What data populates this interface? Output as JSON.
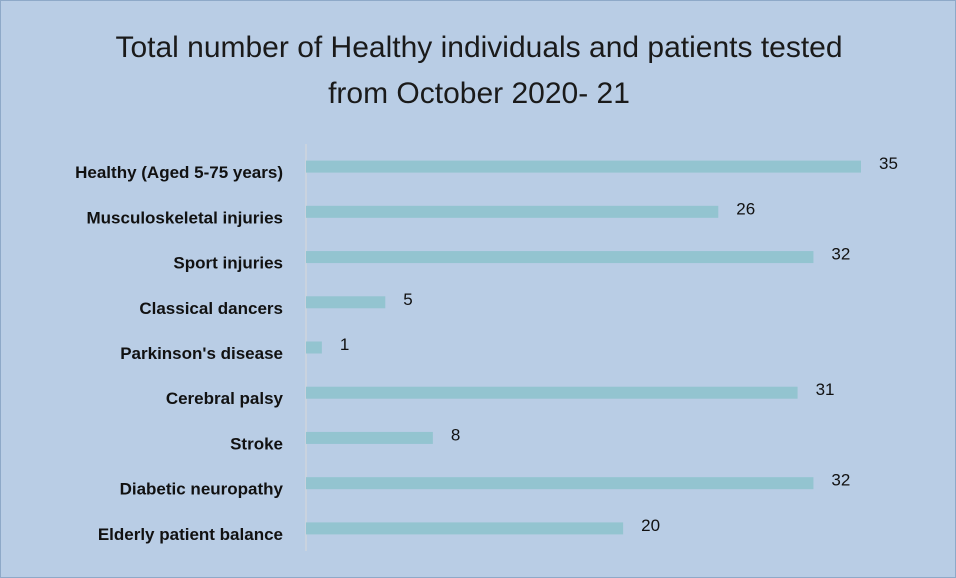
{
  "chart_data": {
    "type": "barh",
    "title": "Total number of Healthy individuals and patients tested from October 2020- 21",
    "categories": [
      "Healthy (Aged 5-75 years)",
      "Musculoskeletal injuries",
      "Sport injuries",
      "Classical dancers",
      "Parkinson's disease",
      "Cerebral palsy",
      "Stroke",
      "Diabetic neuropathy",
      "Elderly patient balance"
    ],
    "values": [
      35,
      26,
      32,
      5,
      1,
      31,
      8,
      32,
      20
    ],
    "color": "#93c4d0"
  }
}
